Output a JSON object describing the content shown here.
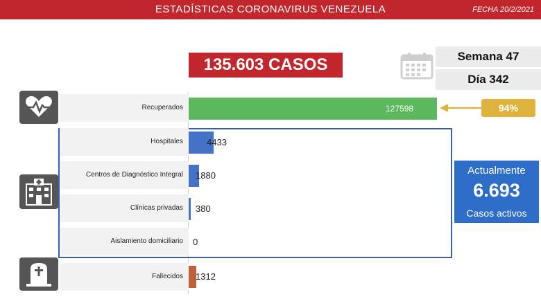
{
  "header": {
    "title": "ESTADÍSTICAS CORONAVIRUS VENEZUELA",
    "date": "FECHA 20/2/2021"
  },
  "summary": {
    "total_cases": "135.603 CASOS",
    "week": "Semana 47",
    "day": "Día 342"
  },
  "recovered": {
    "label": "Recuperados",
    "value": "127598",
    "percent": "94%",
    "bar_color": "#5cb85c"
  },
  "hospitalization": {
    "rows": [
      {
        "label": "Hospitales",
        "value": "4433"
      },
      {
        "label": "Centros de Diagnóstico Integral",
        "value": "1880"
      },
      {
        "label": "Clínicas privadas",
        "value": "380"
      },
      {
        "label": "Aislamiento domiciliario",
        "value": "0"
      }
    ],
    "bar_color": "#4472c4"
  },
  "deaths": {
    "label": "Fallecidos",
    "value": "1312",
    "bar_color": "#c0603a"
  },
  "active": {
    "title": "Actualmente",
    "value": "6.693",
    "subtitle": "Casos activos",
    "color": "#2e6dc8"
  },
  "icons": {
    "recovered": "heart-pulse-icon",
    "hospital": "hospital-building-icon",
    "deaths": "grave-icon",
    "calendar": "calendar-icon"
  }
}
